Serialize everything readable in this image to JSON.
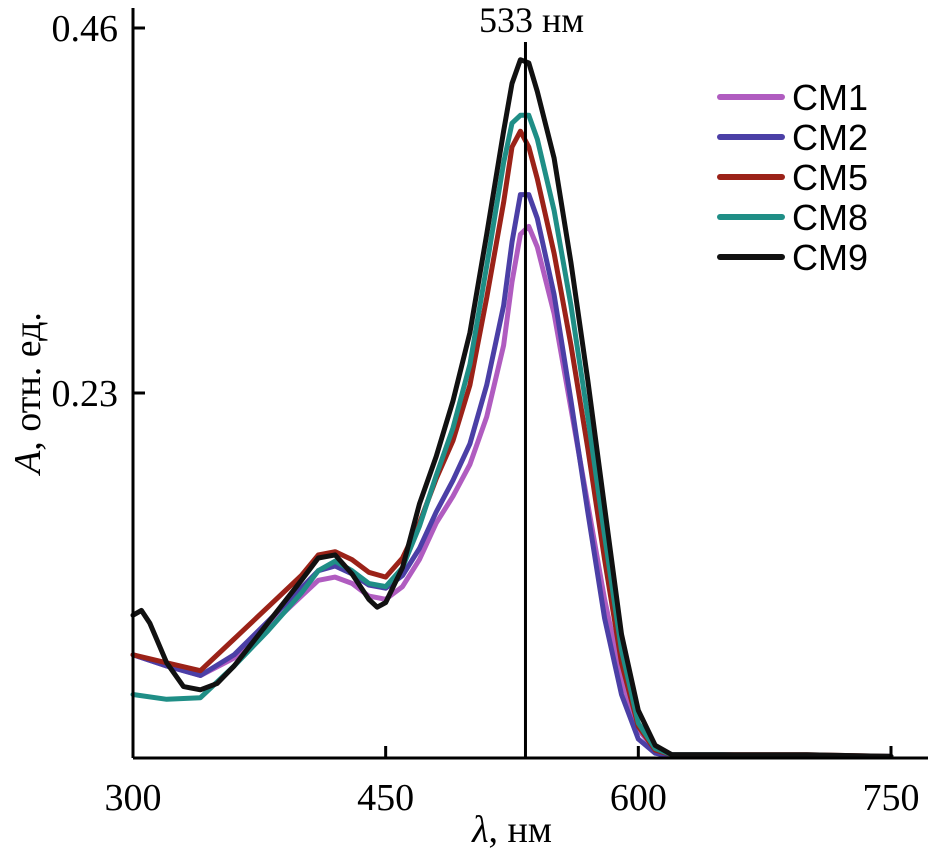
{
  "chart_data": {
    "type": "line",
    "xlabel_symbol": "λ",
    "xlabel_rest": ", нм",
    "ylabel_symbol": "A",
    "ylabel_rest": ", отн. ед.",
    "xlim": [
      300,
      750
    ],
    "ylim": [
      0,
      0.46
    ],
    "xticks": [
      300,
      450,
      600,
      750
    ],
    "xtick_labels": [
      "300",
      "450",
      "600",
      "750"
    ],
    "yticks": [
      0.23,
      0.46
    ],
    "ytick_labels": [
      "0.23",
      "0.46"
    ],
    "annotation": {
      "x": 533,
      "label": "533 нм"
    },
    "legend_position": "top-right",
    "series": [
      {
        "name": "CM1",
        "color": "#b05cc0",
        "x": [
          300,
          320,
          340,
          360,
          380,
          400,
          410,
          420,
          430,
          440,
          450,
          460,
          470,
          480,
          490,
          500,
          510,
          520,
          525,
          530,
          535,
          540,
          550,
          560,
          570,
          580,
          590,
          600,
          610,
          620,
          630,
          650,
          700,
          750
        ],
        "y": [
          0.065,
          0.058,
          0.052,
          0.063,
          0.082,
          0.102,
          0.112,
          0.114,
          0.11,
          0.102,
          0.1,
          0.108,
          0.125,
          0.148,
          0.165,
          0.185,
          0.215,
          0.26,
          0.3,
          0.33,
          0.335,
          0.322,
          0.28,
          0.22,
          0.16,
          0.1,
          0.05,
          0.018,
          0.005,
          0.002,
          0.002,
          0.002,
          0.001,
          0.001
        ]
      },
      {
        "name": "CM2",
        "color": "#4b3fa6",
        "x": [
          300,
          320,
          340,
          360,
          380,
          400,
          410,
          420,
          430,
          440,
          450,
          460,
          470,
          480,
          490,
          500,
          510,
          520,
          525,
          530,
          535,
          540,
          550,
          560,
          570,
          580,
          590,
          600,
          610,
          620,
          630,
          650,
          700,
          750
        ],
        "y": [
          0.065,
          0.058,
          0.052,
          0.065,
          0.086,
          0.107,
          0.118,
          0.121,
          0.116,
          0.109,
          0.107,
          0.115,
          0.132,
          0.155,
          0.175,
          0.198,
          0.235,
          0.285,
          0.325,
          0.355,
          0.355,
          0.34,
          0.292,
          0.225,
          0.155,
          0.088,
          0.04,
          0.012,
          0.003,
          0.001,
          0.001,
          0.001,
          0.001,
          0.001
        ]
      },
      {
        "name": "CM5",
        "color": "#9b2218",
        "x": [
          300,
          320,
          340,
          360,
          380,
          400,
          410,
          420,
          430,
          440,
          450,
          460,
          470,
          480,
          490,
          500,
          510,
          520,
          525,
          530,
          535,
          540,
          550,
          560,
          570,
          580,
          590,
          600,
          610,
          620,
          630,
          650,
          700,
          750
        ],
        "y": [
          0.065,
          0.06,
          0.055,
          0.075,
          0.095,
          0.115,
          0.128,
          0.13,
          0.125,
          0.117,
          0.114,
          0.126,
          0.148,
          0.176,
          0.2,
          0.235,
          0.29,
          0.35,
          0.385,
          0.395,
          0.385,
          0.365,
          0.318,
          0.26,
          0.195,
          0.125,
          0.06,
          0.02,
          0.005,
          0.002,
          0.002,
          0.002,
          0.002,
          0.001
        ]
      },
      {
        "name": "CM8",
        "color": "#1f8e86",
        "x": [
          300,
          320,
          340,
          360,
          380,
          400,
          410,
          420,
          430,
          440,
          450,
          460,
          470,
          480,
          490,
          500,
          510,
          520,
          525,
          530,
          535,
          540,
          550,
          560,
          570,
          580,
          590,
          600,
          610,
          620,
          630,
          650,
          700,
          750
        ],
        "y": [
          0.04,
          0.037,
          0.038,
          0.058,
          0.08,
          0.104,
          0.118,
          0.124,
          0.118,
          0.11,
          0.108,
          0.12,
          0.146,
          0.178,
          0.208,
          0.248,
          0.31,
          0.375,
          0.4,
          0.405,
          0.405,
          0.39,
          0.345,
          0.285,
          0.215,
          0.14,
          0.068,
          0.022,
          0.006,
          0.002,
          0.002,
          0.002,
          0.001,
          0.001
        ]
      },
      {
        "name": "CM9",
        "color": "#111111",
        "x": [
          300,
          305,
          310,
          320,
          330,
          340,
          350,
          360,
          380,
          400,
          410,
          420,
          430,
          440,
          445,
          450,
          460,
          470,
          480,
          490,
          500,
          510,
          520,
          525,
          530,
          535,
          540,
          550,
          560,
          570,
          580,
          590,
          600,
          610,
          620,
          630,
          650,
          700,
          750
        ],
        "y": [
          0.09,
          0.093,
          0.085,
          0.06,
          0.045,
          0.043,
          0.047,
          0.058,
          0.085,
          0.112,
          0.126,
          0.128,
          0.116,
          0.1,
          0.095,
          0.098,
          0.12,
          0.16,
          0.19,
          0.225,
          0.268,
          0.33,
          0.395,
          0.425,
          0.44,
          0.438,
          0.42,
          0.378,
          0.312,
          0.238,
          0.158,
          0.078,
          0.03,
          0.008,
          0.002,
          0.002,
          0.002,
          0.002,
          0.001
        ]
      }
    ]
  }
}
